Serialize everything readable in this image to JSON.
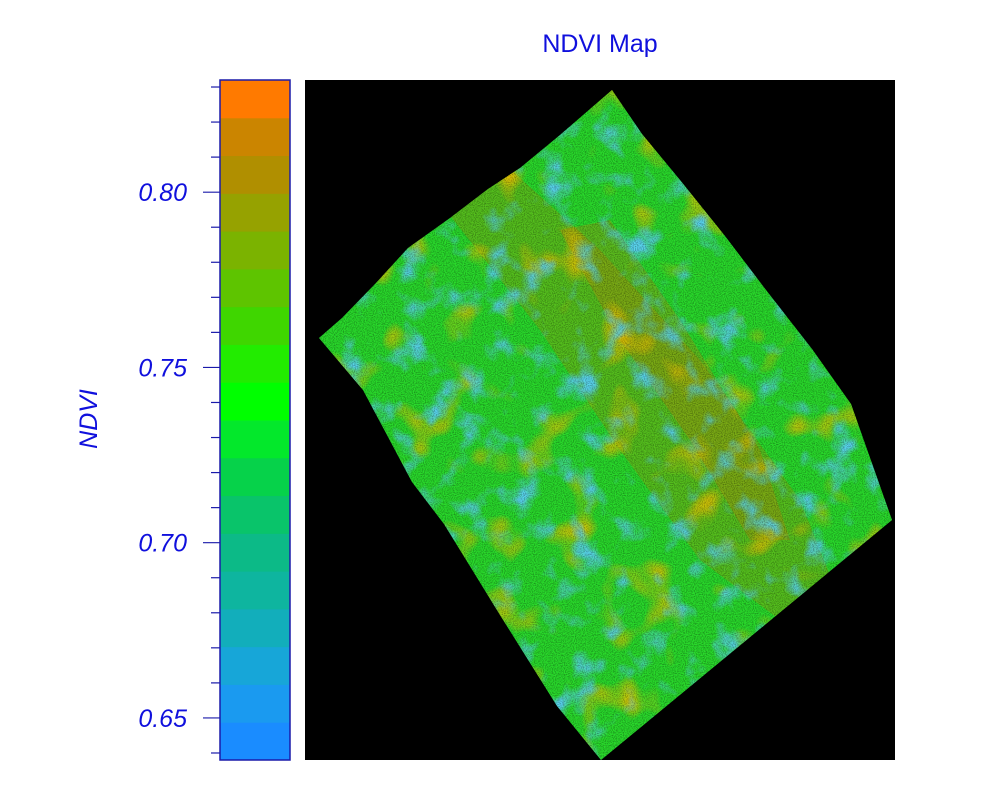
{
  "chart_data": {
    "type": "heatmap",
    "title": "NDVI Map",
    "colorbar": {
      "label": "NDVI",
      "range": [
        0.638,
        0.832
      ],
      "ticks": [
        "0.65",
        "0.70",
        "0.75",
        "0.80"
      ],
      "tick_values": [
        0.65,
        0.7,
        0.75,
        0.8
      ],
      "levels": [
        "#1a8cff",
        "#1a9af0",
        "#17a6d8",
        "#12aebb",
        "#0eb59f",
        "#0cba87",
        "#09c46a",
        "#06d24a",
        "#03e82b",
        "#00ff00",
        "#22ec00",
        "#3fd600",
        "#5ec400",
        "#7bb300",
        "#96a200",
        "#b08f00",
        "#cb8500",
        "#ff7a00"
      ]
    },
    "colors": {
      "text": "#1010dd",
      "background": "#000000",
      "frame": "#1a1aaa"
    }
  }
}
